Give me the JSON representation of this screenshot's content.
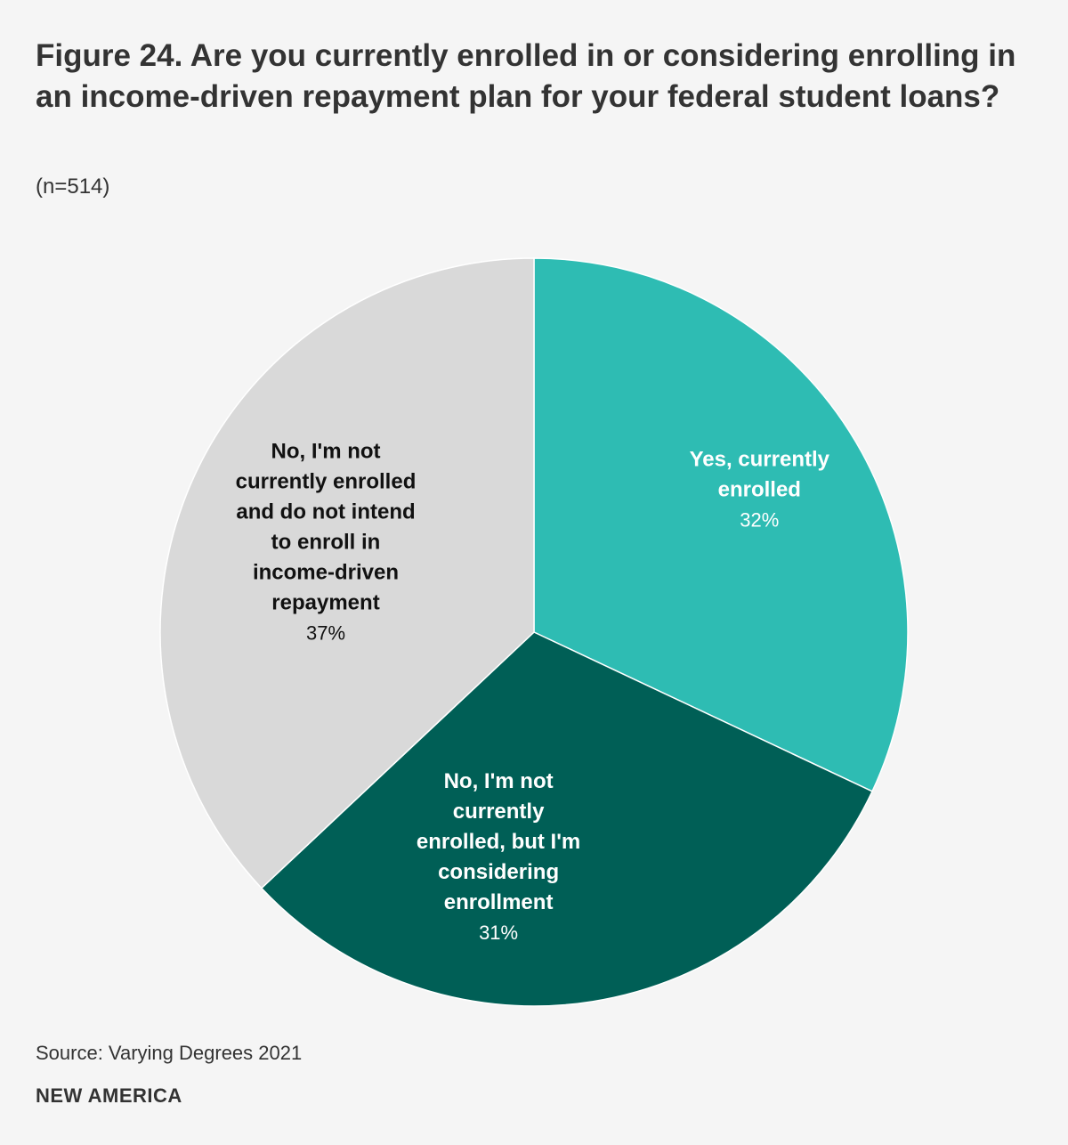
{
  "header": {
    "title": "Figure 24. Are you currently enrolled in or considering enrolling in an income-driven repayment plan for your federal student loans?",
    "subtitle": "(n=514)"
  },
  "footer": {
    "source": "Source: Varying Degrees 2021",
    "brand": "NEW AMERICA"
  },
  "chart_data": {
    "type": "pie",
    "title": "Figure 24. Are you currently enrolled in or considering enrolling in an income-driven repayment plan for your federal student loans?",
    "subtitle": "(n=514)",
    "start": "12 o'clock, clockwise",
    "slices": [
      {
        "label": "Yes, currently enrolled",
        "label_lines": [
          "Yes, currently",
          "enrolled"
        ],
        "value": 32,
        "value_label": "32%",
        "color": "#2ebcb3",
        "text_color": "#ffffff"
      },
      {
        "label": "No, I'm not currently enrolled, but I'm considering enrollment",
        "label_lines": [
          "No, I'm not",
          "currently",
          "enrolled, but I'm",
          "considering",
          "enrollment"
        ],
        "value": 31,
        "value_label": "31%",
        "color": "#005f56",
        "text_color": "#ffffff"
      },
      {
        "label": "No, I'm not currently enrolled and do not intend to enroll in income-driven repayment",
        "label_lines": [
          "No, I'm not",
          "currently enrolled",
          "and do not intend",
          "to enroll in",
          "income-driven",
          "repayment"
        ],
        "value": 37,
        "value_label": "37%",
        "color": "#d9d9d9",
        "text_color": "#111111"
      }
    ]
  }
}
